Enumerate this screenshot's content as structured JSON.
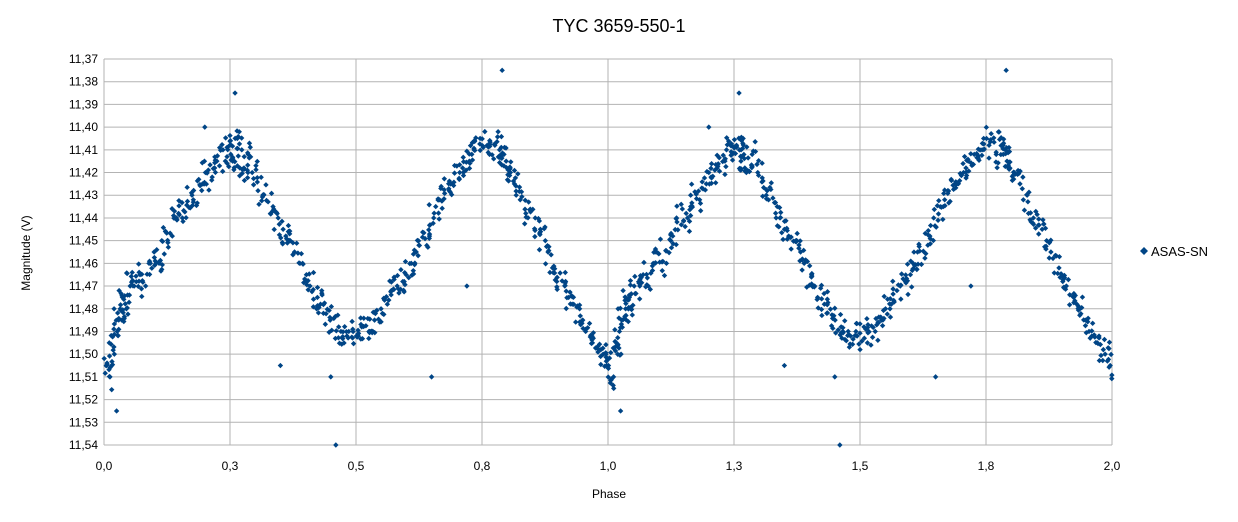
{
  "chart_data": {
    "type": "scatter",
    "title": "TYC 3659-550-1",
    "xlabel": "Phase",
    "ylabel": "Magnitude (V)",
    "xlim": [
      0.0,
      2.0
    ],
    "ylim": [
      11.37,
      11.54
    ],
    "y_reversed": true,
    "x_ticks": [
      "0,0",
      "0,3",
      "0,5",
      "0,8",
      "1,0",
      "1,3",
      "1,5",
      "1,8",
      "2,0"
    ],
    "y_ticks": [
      "11,37",
      "11,38",
      "11,39",
      "11,40",
      "11,41",
      "11,42",
      "11,43",
      "11,44",
      "11,45",
      "11,46",
      "11,47",
      "11,48",
      "11,49",
      "11,50",
      "11,51",
      "11,52",
      "11,53",
      "11,54"
    ],
    "grid": true,
    "legend_position": "right",
    "series": [
      {
        "name": "ASAS-SN",
        "color": "#004586",
        "marker": "diamond",
        "phase_period": 1.0,
        "x": [
          0.005,
          0.01,
          0.015,
          0.02,
          0.025,
          0.03,
          0.035,
          0.04,
          0.045,
          0.05,
          0.06,
          0.07,
          0.08,
          0.09,
          0.1,
          0.11,
          0.12,
          0.13,
          0.14,
          0.15,
          0.16,
          0.17,
          0.18,
          0.19,
          0.2,
          0.21,
          0.22,
          0.23,
          0.24,
          0.25,
          0.255,
          0.26,
          0.265,
          0.27,
          0.275,
          0.28,
          0.29,
          0.3,
          0.31,
          0.32,
          0.33,
          0.34,
          0.35,
          0.36,
          0.37,
          0.38,
          0.39,
          0.4,
          0.41,
          0.42,
          0.43,
          0.44,
          0.45,
          0.46,
          0.47,
          0.48,
          0.49,
          0.5,
          0.51,
          0.52,
          0.53,
          0.54,
          0.55,
          0.56,
          0.57,
          0.58,
          0.59,
          0.6,
          0.61,
          0.62,
          0.63,
          0.64,
          0.65,
          0.66,
          0.67,
          0.68,
          0.69,
          0.7,
          0.71,
          0.72,
          0.73,
          0.74,
          0.75,
          0.76,
          0.77,
          0.78,
          0.785,
          0.79,
          0.795,
          0.8,
          0.81,
          0.82,
          0.83,
          0.84,
          0.85,
          0.86,
          0.87,
          0.88,
          0.89,
          0.9,
          0.91,
          0.92,
          0.93,
          0.94,
          0.95,
          0.96,
          0.97,
          0.98,
          0.99,
          0.995
        ],
        "y": [
          11.505,
          11.51,
          11.495,
          11.5,
          11.49,
          11.485,
          11.48,
          11.475,
          11.48,
          11.47,
          11.47,
          11.465,
          11.47,
          11.46,
          11.455,
          11.46,
          11.45,
          11.448,
          11.44,
          11.438,
          11.44,
          11.43,
          11.432,
          11.425,
          11.42,
          11.422,
          11.418,
          11.415,
          11.41,
          11.412,
          11.408,
          11.415,
          11.405,
          11.41,
          11.418,
          11.42,
          11.412,
          11.42,
          11.428,
          11.43,
          11.435,
          11.44,
          11.445,
          11.448,
          11.45,
          11.455,
          11.46,
          11.465,
          11.47,
          11.475,
          11.478,
          11.482,
          11.485,
          11.488,
          11.49,
          11.492,
          11.49,
          11.492,
          11.488,
          11.49,
          11.49,
          11.485,
          11.48,
          11.478,
          11.472,
          11.47,
          11.468,
          11.465,
          11.46,
          11.455,
          11.452,
          11.448,
          11.44,
          11.435,
          11.432,
          11.428,
          11.425,
          11.42,
          11.418,
          11.415,
          11.412,
          11.41,
          11.405,
          11.408,
          11.412,
          11.408,
          11.41,
          11.412,
          11.415,
          11.418,
          11.42,
          11.425,
          11.432,
          11.438,
          11.44,
          11.445,
          11.45,
          11.455,
          11.462,
          11.468,
          11.47,
          11.475,
          11.478,
          11.48,
          11.485,
          11.49,
          11.495,
          11.498,
          11.5,
          11.505
        ],
        "outliers_x": [
          0.025,
          0.26,
          0.35,
          0.46,
          0.65,
          0.72,
          0.79,
          0.45,
          0.02,
          0.03,
          0.2
        ],
        "outliers_y": [
          11.525,
          11.385,
          11.505,
          11.54,
          11.51,
          11.47,
          11.375,
          11.51,
          11.48,
          11.472,
          11.4
        ]
      }
    ]
  }
}
